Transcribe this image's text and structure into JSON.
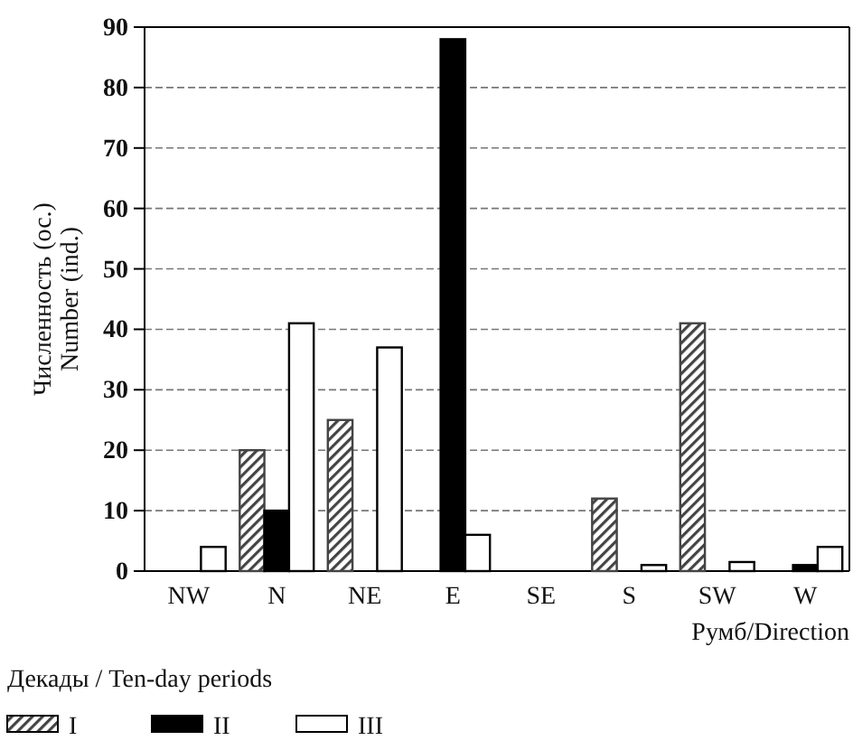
{
  "chart_data": {
    "type": "bar",
    "categories": [
      "NW",
      "N",
      "NE",
      "E",
      "SE",
      "S",
      "SW",
      "W"
    ],
    "series": [
      {
        "name": "I",
        "color": "#444444",
        "values": [
          0,
          20,
          25,
          0,
          0,
          12,
          41,
          0
        ]
      },
      {
        "name": "II",
        "color": "#000000",
        "values": [
          0,
          10,
          0,
          88,
          0,
          0,
          0,
          1
        ]
      },
      {
        "name": "III",
        "color": "#ffffff",
        "values": [
          4,
          41,
          37,
          6,
          0,
          1,
          1.5,
          4
        ]
      }
    ],
    "xlabel": "Румб/Direction",
    "ylabel": "Численность (ос.)\nNumber (ind.)",
    "legend_title": "Декады / Ten-day periods",
    "ylim": [
      0,
      90
    ],
    "yticks": [
      0,
      10,
      20,
      30,
      40,
      50,
      60,
      70,
      80,
      90
    ],
    "grid": "y",
    "legend": "bottom left"
  }
}
